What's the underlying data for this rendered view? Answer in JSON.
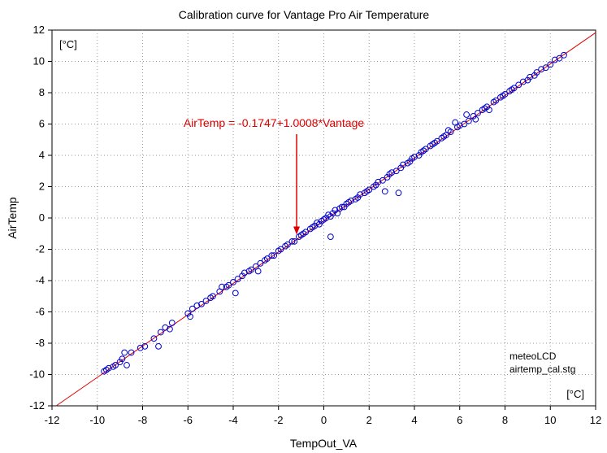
{
  "chart_data": {
    "type": "scatter",
    "title": "Calibration curve for Vantage Pro Air Temperature",
    "xlabel": "TempOut_VA",
    "ylabel": "AirTemp",
    "xlim": [
      -12,
      12
    ],
    "ylim": [
      -12,
      12
    ],
    "xticks": [
      -12,
      -10,
      -8,
      -6,
      -4,
      -2,
      0,
      2,
      4,
      6,
      8,
      10,
      12
    ],
    "yticks": [
      -12,
      -10,
      -8,
      -6,
      -4,
      -2,
      0,
      2,
      4,
      6,
      8,
      10,
      12
    ],
    "grid": true,
    "x_unit": "[°C]",
    "y_unit": "[°C]",
    "notes": [
      "meteoLCD",
      "airtemp_cal.stg"
    ],
    "fit": {
      "intercept": -0.1747,
      "slope": 1.0008,
      "label": "AirTemp = -0.1747+1.0008*Vantage",
      "color": "#dd0000",
      "annotation_x": -1.2
    },
    "marker_color": "#0000cc",
    "series": [
      {
        "points": [
          [
            -9.7,
            -9.8
          ],
          [
            -9.6,
            -9.7
          ],
          [
            -9.5,
            -9.6
          ],
          [
            -9.3,
            -9.5
          ],
          [
            -9.2,
            -9.4
          ],
          [
            -9.0,
            -9.2
          ],
          [
            -8.9,
            -9.0
          ],
          [
            -8.8,
            -8.6
          ],
          [
            -8.7,
            -9.4
          ],
          [
            -8.5,
            -8.6
          ],
          [
            -8.1,
            -8.3
          ],
          [
            -7.9,
            -8.2
          ],
          [
            -7.5,
            -7.7
          ],
          [
            -7.3,
            -8.2
          ],
          [
            -7.2,
            -7.3
          ],
          [
            -7.0,
            -7.0
          ],
          [
            -6.8,
            -7.1
          ],
          [
            -6.7,
            -6.7
          ],
          [
            -6.0,
            -6.1
          ],
          [
            -5.9,
            -6.3
          ],
          [
            -5.8,
            -5.8
          ],
          [
            -5.6,
            -5.6
          ],
          [
            -5.4,
            -5.5
          ],
          [
            -5.2,
            -5.3
          ],
          [
            -5.0,
            -5.1
          ],
          [
            -4.9,
            -5.0
          ],
          [
            -4.6,
            -4.7
          ],
          [
            -4.5,
            -4.4
          ],
          [
            -4.3,
            -4.4
          ],
          [
            -4.2,
            -4.3
          ],
          [
            -4.0,
            -4.1
          ],
          [
            -3.9,
            -4.8
          ],
          [
            -3.8,
            -3.9
          ],
          [
            -3.6,
            -3.7
          ],
          [
            -3.5,
            -3.5
          ],
          [
            -3.3,
            -3.4
          ],
          [
            -3.2,
            -3.3
          ],
          [
            -3.0,
            -3.1
          ],
          [
            -2.9,
            -3.4
          ],
          [
            -2.8,
            -2.9
          ],
          [
            -2.6,
            -2.7
          ],
          [
            -2.5,
            -2.6
          ],
          [
            -2.3,
            -2.4
          ],
          [
            -2.2,
            -2.4
          ],
          [
            -2.0,
            -2.1
          ],
          [
            -1.9,
            -2.0
          ],
          [
            -1.7,
            -1.8
          ],
          [
            -1.6,
            -1.7
          ],
          [
            -1.4,
            -1.5
          ],
          [
            -1.3,
            -1.5
          ],
          [
            -1.1,
            -1.2
          ],
          [
            -1.0,
            -1.1
          ],
          [
            -0.9,
            -1.0
          ],
          [
            -0.8,
            -0.9
          ],
          [
            -0.6,
            -0.7
          ],
          [
            -0.5,
            -0.6
          ],
          [
            -0.4,
            -0.5
          ],
          [
            -0.3,
            -0.3
          ],
          [
            -0.2,
            -0.4
          ],
          [
            -0.1,
            -0.2
          ],
          [
            0.0,
            -0.1
          ],
          [
            0.1,
            0.0
          ],
          [
            0.2,
            0.2
          ],
          [
            0.3,
            -1.2
          ],
          [
            0.3,
            0.1
          ],
          [
            0.4,
            0.3
          ],
          [
            0.5,
            0.5
          ],
          [
            0.6,
            0.3
          ],
          [
            0.7,
            0.6
          ],
          [
            0.8,
            0.7
          ],
          [
            0.9,
            0.7
          ],
          [
            1.0,
            0.9
          ],
          [
            1.1,
            1.0
          ],
          [
            1.2,
            1.1
          ],
          [
            1.4,
            1.2
          ],
          [
            1.5,
            1.3
          ],
          [
            1.6,
            1.5
          ],
          [
            1.8,
            1.6
          ],
          [
            1.9,
            1.7
          ],
          [
            2.0,
            1.8
          ],
          [
            2.2,
            2.0
          ],
          [
            2.3,
            2.1
          ],
          [
            2.4,
            2.3
          ],
          [
            2.6,
            2.4
          ],
          [
            2.7,
            1.7
          ],
          [
            2.8,
            2.6
          ],
          [
            2.9,
            2.8
          ],
          [
            3.0,
            2.9
          ],
          [
            3.2,
            3.0
          ],
          [
            3.3,
            1.6
          ],
          [
            3.4,
            3.2
          ],
          [
            3.5,
            3.4
          ],
          [
            3.7,
            3.5
          ],
          [
            3.8,
            3.6
          ],
          [
            3.9,
            3.8
          ],
          [
            4.0,
            3.9
          ],
          [
            4.2,
            4.0
          ],
          [
            4.3,
            4.2
          ],
          [
            4.4,
            4.3
          ],
          [
            4.5,
            4.4
          ],
          [
            4.7,
            4.6
          ],
          [
            4.8,
            4.7
          ],
          [
            4.9,
            4.8
          ],
          [
            5.0,
            4.9
          ],
          [
            5.2,
            5.1
          ],
          [
            5.3,
            5.2
          ],
          [
            5.4,
            5.3
          ],
          [
            5.5,
            5.6
          ],
          [
            5.6,
            5.5
          ],
          [
            5.8,
            6.1
          ],
          [
            5.9,
            5.8
          ],
          [
            6.0,
            5.9
          ],
          [
            6.2,
            6.0
          ],
          [
            6.3,
            6.6
          ],
          [
            6.4,
            6.2
          ],
          [
            6.6,
            6.5
          ],
          [
            6.7,
            6.3
          ],
          [
            6.8,
            6.7
          ],
          [
            7.0,
            6.9
          ],
          [
            7.1,
            7.0
          ],
          [
            7.2,
            7.1
          ],
          [
            7.3,
            6.9
          ],
          [
            7.5,
            7.4
          ],
          [
            7.6,
            7.5
          ],
          [
            7.8,
            7.7
          ],
          [
            7.9,
            7.8
          ],
          [
            8.0,
            7.9
          ],
          [
            8.2,
            8.1
          ],
          [
            8.3,
            8.2
          ],
          [
            8.4,
            8.3
          ],
          [
            8.6,
            8.5
          ],
          [
            8.8,
            8.7
          ],
          [
            9.0,
            8.8
          ],
          [
            9.1,
            9.0
          ],
          [
            9.3,
            9.1
          ],
          [
            9.4,
            9.3
          ],
          [
            9.6,
            9.5
          ],
          [
            9.8,
            9.6
          ],
          [
            10.0,
            9.8
          ],
          [
            10.2,
            10.1
          ],
          [
            10.4,
            10.2
          ],
          [
            10.6,
            10.4
          ]
        ]
      }
    ]
  }
}
